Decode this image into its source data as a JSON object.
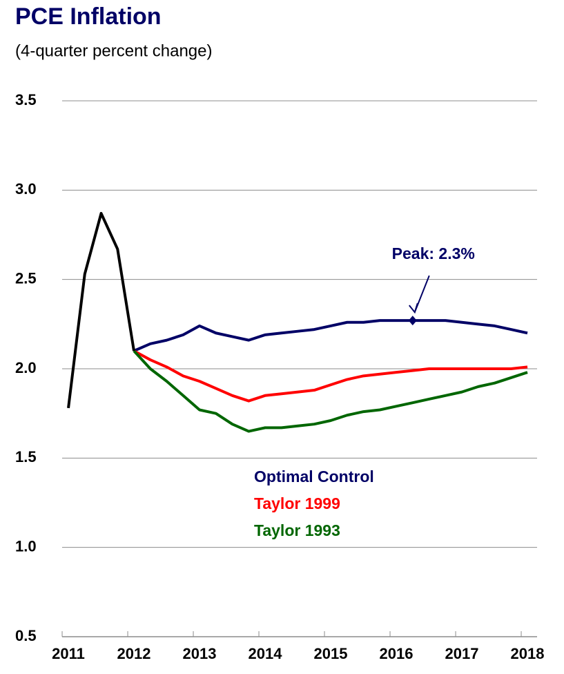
{
  "chart_data": {
    "type": "line",
    "title": "PCE Inflation",
    "subtitle": "(4-quarter percent change)",
    "xlim": [
      2010.905,
      2018.147
    ],
    "xticks": [
      2011,
      2012,
      2013,
      2014,
      2015,
      2016,
      2017,
      2018
    ],
    "ylim": [
      0.5,
      3.5
    ],
    "yticks": [
      {
        "value": 0.5,
        "label": "0.5"
      },
      {
        "value": 1,
        "label": "1.0"
      },
      {
        "value": 1.5,
        "label": "1.5"
      },
      {
        "value": 2,
        "label": "2.0"
      },
      {
        "value": 2.5,
        "label": "2.5"
      },
      {
        "value": 3,
        "label": "3.0"
      },
      {
        "value": 3.5,
        "label": "3.5"
      }
    ],
    "grid": true,
    "series": [
      {
        "color": "#000000",
        "x": [
          2011,
          2011.25,
          2011.5,
          2011.75,
          2012
        ],
        "values": [
          1.78,
          2.53,
          2.87,
          2.67,
          2.1
        ]
      },
      {
        "name": "Optimal Control",
        "color": "#000066",
        "x": [
          2012,
          2012.25,
          2012.5,
          2012.75,
          2013,
          2013.25,
          2013.5,
          2013.75,
          2014,
          2014.25,
          2014.5,
          2014.75,
          2015,
          2015.25,
          2015.5,
          2015.75,
          2016,
          2016.25,
          2016.5,
          2016.75,
          2017,
          2017.25,
          2017.5,
          2017.75,
          2018
        ],
        "values": [
          2.1,
          2.14,
          2.16,
          2.19,
          2.24,
          2.2,
          2.18,
          2.16,
          2.19,
          2.2,
          2.21,
          2.22,
          2.24,
          2.26,
          2.26,
          2.27,
          2.27,
          2.27,
          2.27,
          2.27,
          2.26,
          2.25,
          2.24,
          2.22,
          2.2
        ]
      },
      {
        "name": "Taylor 1999",
        "color": "#ff0000",
        "x": [
          2012,
          2012.25,
          2012.5,
          2012.75,
          2013,
          2013.25,
          2013.5,
          2013.75,
          2014,
          2014.25,
          2014.5,
          2014.75,
          2015,
          2015.25,
          2015.5,
          2015.75,
          2016,
          2016.25,
          2016.5,
          2016.75,
          2017,
          2017.25,
          2017.5,
          2017.75,
          2018
        ],
        "values": [
          2.1,
          2.05,
          2.01,
          1.96,
          1.93,
          1.89,
          1.85,
          1.82,
          1.85,
          1.86,
          1.87,
          1.88,
          1.91,
          1.94,
          1.96,
          1.97,
          1.98,
          1.99,
          2.0,
          2.0,
          2.0,
          2.0,
          2.0,
          2.0,
          2.01
        ]
      },
      {
        "name": "Taylor 1993",
        "color": "#006600",
        "x": [
          2012,
          2012.25,
          2012.5,
          2012.75,
          2013,
          2013.25,
          2013.5,
          2013.75,
          2014,
          2014.25,
          2014.5,
          2014.75,
          2015,
          2015.25,
          2015.5,
          2015.75,
          2016,
          2016.25,
          2016.5,
          2016.75,
          2017,
          2017.25,
          2017.5,
          2017.75,
          2018
        ],
        "values": [
          2.1,
          2.0,
          1.93,
          1.85,
          1.77,
          1.75,
          1.69,
          1.65,
          1.67,
          1.67,
          1.68,
          1.69,
          1.71,
          1.74,
          1.76,
          1.77,
          1.79,
          1.81,
          1.83,
          1.85,
          1.87,
          1.9,
          1.92,
          1.95,
          1.98
        ]
      }
    ],
    "annotations": [
      {
        "text": "Peak: 2.3%",
        "x": 2016.25,
        "y": 2.27
      }
    ]
  }
}
